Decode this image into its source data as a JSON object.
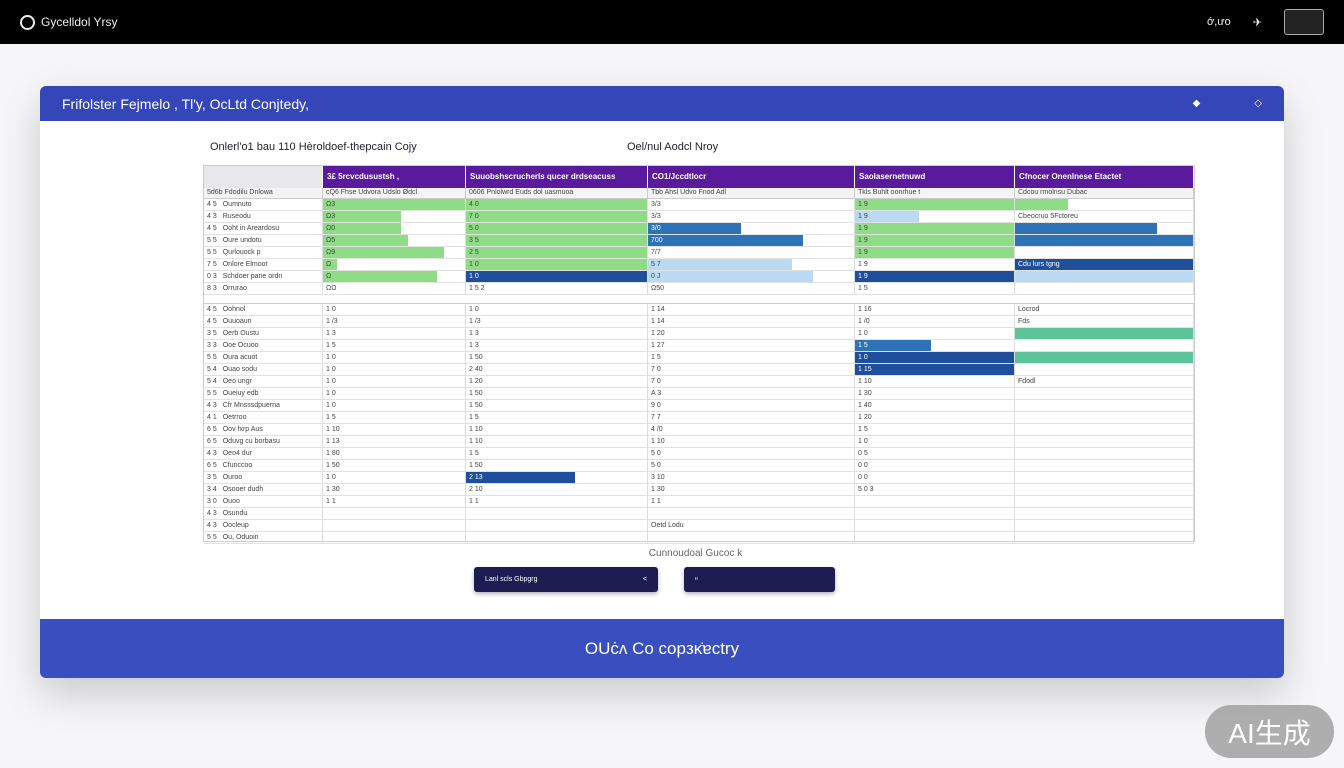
{
  "app": {
    "title": "Gycelldol Yrsy",
    "right_text": "ớ,ưo"
  },
  "card": {
    "title": "Frifolster Fejmelo , Tl'y, OcLtd Conjtedy,",
    "subtitle_left": "Onlerl'o1 bau 110 Hèroldoef-thepcain Cojy",
    "subtitle_right": "Oel/nul Aodcl Nroy",
    "footer": "OUċʌ Co copзκ̇ɐctry",
    "caption": "Cunnoudoal Gucoc k"
  },
  "colors": {
    "header": "#3446b8",
    "group_header": "#5a1a9c",
    "green": "#8fdc86",
    "dark_blue": "#1f4e9a",
    "blue": "#2e72b8",
    "light_blue": "#b9daf2",
    "teal": "#5cc39a",
    "button": "#1d1d52"
  },
  "grid": {
    "groups": [
      "",
      "3£ 5rcvcdusustsh ,",
      "Suuobshscrucherls qucer drdseacuss",
      "CO1/Jccdtlocr",
      "Saolasernetnuwd",
      "Cfnocer Onenlnese Etactet"
    ],
    "subheaders": [
      "5d6b  Fdodilu  Dnlowa",
      "cQ6  Fhse  Udvora  Udslo  Ødcl",
      "0606  Pnlolwrd  Euds  dol  uasmuoa",
      "Tbb  Ahsl  Udvo  Fnod  Adl",
      "Tkls  Buhlt  oonrhue  t",
      "Cdcou  rmolnsu  Dubac"
    ],
    "top_rows": [
      {
        "n": "4 5",
        "label": "Oumnuto",
        "v": [
          "Ω3",
          "4 0",
          "3/3",
          "1 9",
          ""
        ],
        "b": [
          [
            "green",
            1
          ],
          [
            "green",
            1
          ],
          null,
          [
            "green",
            1
          ],
          [
            "green",
            0.3
          ]
        ]
      },
      {
        "n": "4 3",
        "label": "Ruseodu",
        "v": [
          "Ω3",
          "7 0",
          "3/3",
          "1 9",
          "Cbeocruo 5Fctoreu"
        ],
        "b": [
          [
            "green",
            0.55
          ],
          [
            "green",
            1
          ],
          null,
          [
            "light_blue",
            0.4
          ],
          null
        ]
      },
      {
        "n": "4 5",
        "label": "Ooht in Areardosu",
        "v": [
          "Ω0",
          "5 0",
          "3/0",
          "1 9",
          ""
        ],
        "b": [
          [
            "green",
            0.55
          ],
          [
            "green",
            1
          ],
          [
            "blue",
            0.45
          ],
          [
            "green",
            1
          ],
          [
            "blue",
            0.8
          ]
        ]
      },
      {
        "n": "5 5",
        "label": "Oure undotu",
        "v": [
          "Ω5",
          "3 5",
          "700",
          "1 9",
          ""
        ],
        "b": [
          [
            "green",
            0.6
          ],
          [
            "green",
            1
          ],
          [
            "blue",
            0.75
          ],
          [
            "green",
            1
          ],
          [
            "blue",
            1
          ]
        ]
      },
      {
        "n": "5 5",
        "label": "Qurlouock p",
        "v": [
          "Ω9",
          "2 5",
          "7/7",
          "1 9",
          ""
        ],
        "b": [
          [
            "green",
            0.85
          ],
          [
            "green",
            1
          ],
          null,
          [
            "green",
            1
          ],
          null
        ]
      },
      {
        "n": "7 5",
        "label": "Onlore Elmoot",
        "v": [
          "Ω",
          "1 0",
          "5 7",
          "1 9",
          "Cdu lurs tgng"
        ],
        "b": [
          [
            "green",
            0.1
          ],
          [
            "green",
            1
          ],
          [
            "light_blue",
            0.7
          ],
          null,
          [
            "dark_blue",
            1
          ]
        ]
      },
      {
        "n": "0 3",
        "label": "Schdoer pane ordn",
        "v": [
          "Ω",
          "1 0",
          "0 J",
          "1 9",
          ""
        ],
        "b": [
          [
            "green",
            0.8
          ],
          [
            "dark_blue",
            1
          ],
          [
            "light_blue",
            0.8
          ],
          [
            "dark_blue",
            1
          ],
          [
            "light_blue",
            1
          ]
        ]
      },
      {
        "n": "8 3",
        "label": "Orrurao",
        "v": [
          "ΩΩ",
          "1 5 2",
          "Ω50",
          "1 5",
          ""
        ],
        "b": [
          null,
          null,
          null,
          null,
          null
        ]
      }
    ],
    "bottom_rows": [
      {
        "n": "4 5",
        "label": "Oohnol",
        "v": [
          "1 0",
          "1 0",
          "1 14",
          "1 16",
          "Locrod"
        ],
        "b": [
          null,
          null,
          null,
          null,
          null
        ]
      },
      {
        "n": "4 5",
        "label": "Ouuoaun",
        "v": [
          "1 /3",
          "1 /3",
          "1 14",
          "1 /0",
          "Fds"
        ],
        "b": [
          null,
          null,
          null,
          null,
          null
        ]
      },
      {
        "n": "3 5",
        "label": "Oerb Oustu",
        "v": [
          "1 3",
          "1 3",
          "1 20",
          "1 0",
          ""
        ],
        "b": [
          null,
          null,
          null,
          null,
          [
            "teal",
            1
          ]
        ]
      },
      {
        "n": "3 3",
        "label": "Ooe Ocuoo",
        "v": [
          "1 5",
          "1 3",
          "1 27",
          "1 5",
          ""
        ],
        "b": [
          null,
          null,
          null,
          [
            "blue",
            0.48
          ],
          null
        ]
      },
      {
        "n": "5 5",
        "label": "Oura acuot",
        "v": [
          "1 0",
          "1 50",
          "1 5",
          "1 0",
          ""
        ],
        "b": [
          null,
          null,
          null,
          [
            "dark_blue",
            1
          ],
          [
            "teal",
            1
          ]
        ]
      },
      {
        "n": "5 4",
        "label": "Ouao sodu",
        "v": [
          "1 0",
          "2 40",
          "7 0",
          "1 15",
          ""
        ],
        "b": [
          null,
          null,
          null,
          [
            "dark_blue",
            1
          ],
          null
        ]
      },
      {
        "n": "5 4",
        "label": "Oeo ungr",
        "v": [
          "1 0",
          "1 20",
          "7 0",
          "1 10",
          "Fdodl"
        ],
        "b": [
          null,
          null,
          null,
          null,
          null
        ]
      },
      {
        "n": "5 5",
        "label": "Oueiuy edb",
        "v": [
          "1 0",
          "1 50",
          "A 3",
          "1 30",
          ""
        ],
        "b": [
          null,
          null,
          null,
          null,
          null
        ]
      },
      {
        "n": "4 3",
        "label": "Cfr Mnsssdpuerna",
        "v": [
          "1 0",
          "1 50",
          "9 0",
          "1 40",
          ""
        ],
        "b": [
          null,
          null,
          null,
          null,
          null
        ]
      },
      {
        "n": "4 1",
        "label": "Oetrroo",
        "v": [
          "1 5",
          "1 5",
          "7 7",
          "1 20",
          ""
        ],
        "b": [
          null,
          null,
          null,
          null,
          null
        ]
      },
      {
        "n": "6 5",
        "label": "Oov fxrp Aus",
        "v": [
          "1 10",
          "1 10",
          "4 /0",
          "1 5",
          ""
        ],
        "b": [
          null,
          null,
          null,
          null,
          null
        ]
      },
      {
        "n": "6 5",
        "label": "Oduvg cu borbasu",
        "v": [
          "1 13",
          "1 10",
          "1 10",
          "1 0",
          ""
        ],
        "b": [
          null,
          null,
          null,
          null,
          null
        ]
      },
      {
        "n": "4 3",
        "label": "Oeo4 dur",
        "v": [
          "1 80",
          "1 5",
          "5 0",
          "0 5",
          ""
        ],
        "b": [
          null,
          null,
          null,
          null,
          null
        ]
      },
      {
        "n": "6 5",
        "label": "Cfunccoo",
        "v": [
          "1 50",
          "1 50",
          "5 0",
          "0 0",
          ""
        ],
        "b": [
          null,
          null,
          null,
          null,
          null
        ]
      },
      {
        "n": "3 5",
        "label": "Ouroo",
        "v": [
          "1 0",
          "2 13",
          "3 10",
          "0 0",
          ""
        ],
        "b": [
          null,
          [
            "dark_blue",
            0.6
          ],
          null,
          null,
          null
        ]
      },
      {
        "n": "3 4",
        "label": "Osooer dudh",
        "v": [
          "1 30",
          "2 10",
          "1 30",
          "5 0 3",
          ""
        ],
        "b": [
          null,
          null,
          null,
          null,
          null
        ]
      },
      {
        "n": "3 0",
        "label": "Ouoo",
        "v": [
          "1 1",
          "1 1",
          "1 1",
          "",
          ""
        ],
        "b": [
          null,
          null,
          null,
          null,
          null
        ]
      },
      {
        "n": "4 3",
        "label": "Osundu",
        "v": [
          "",
          "",
          "",
          "",
          ""
        ],
        "b": [
          null,
          null,
          null,
          null,
          null
        ]
      },
      {
        "n": "4 3",
        "label": "Oocleup",
        "v": [
          "",
          "",
          "Oetd Lodu",
          "",
          ""
        ],
        "b": [
          null,
          null,
          null,
          null,
          null
        ]
      },
      {
        "n": "5 5",
        "label": "Ou, Oduoin",
        "v": [
          "",
          "",
          "",
          "",
          ""
        ],
        "b": [
          null,
          null,
          null,
          null,
          null
        ]
      }
    ]
  },
  "buttons": {
    "primary": "Lanl scls Gbpgrg",
    "primary_icon": "chevron-left-icon",
    "secondary": "ᐦ"
  },
  "watermark": "AI生成"
}
